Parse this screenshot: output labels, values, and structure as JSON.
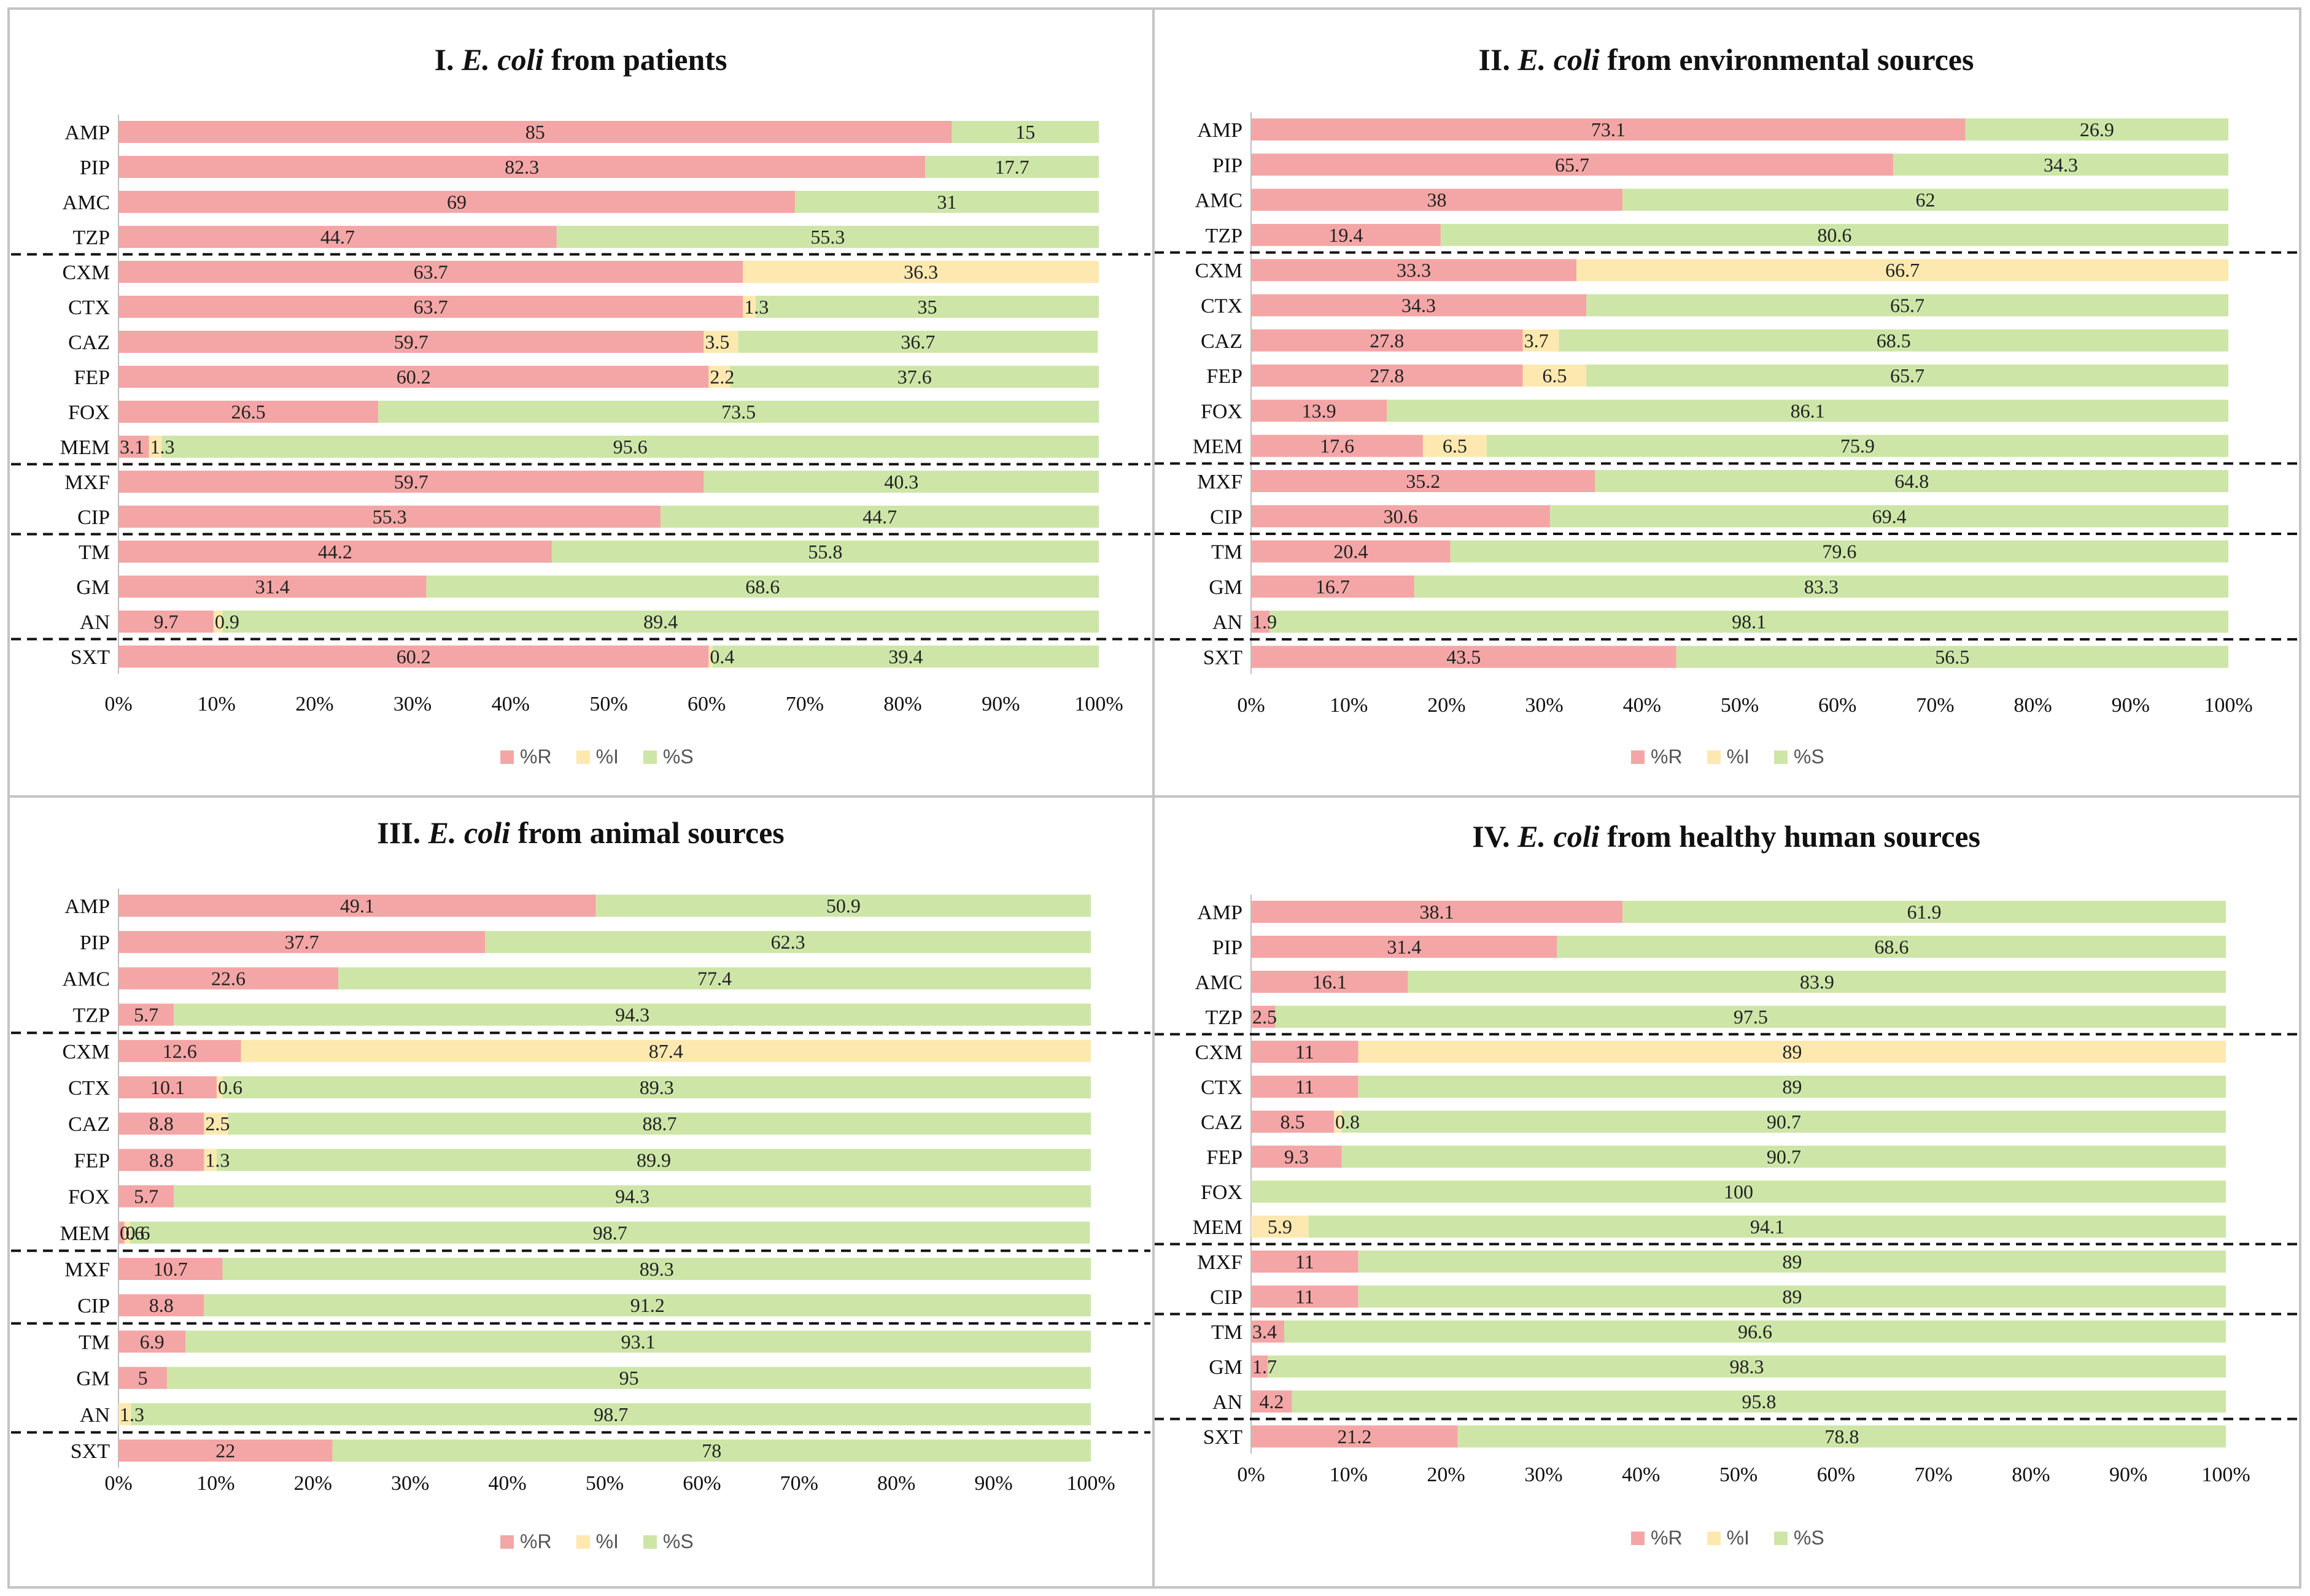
{
  "colors": {
    "R": "#f4a6a6",
    "I": "#fde9b0",
    "S": "#cde6a8",
    "frame": "#c4c4c4"
  },
  "legend": {
    "R": "%R",
    "I": "%I",
    "S": "%S"
  },
  "panels": [
    {
      "title_prefix": "I.",
      "title_organism": "E. coli",
      "title_suffix": "from patients"
    },
    {
      "title_prefix": "II.",
      "title_organism": "E. coli",
      "title_suffix": "from environmental sources"
    },
    {
      "title_prefix": "III.",
      "title_organism": "E. coli",
      "title_suffix": "from animal sources"
    },
    {
      "title_prefix": "IV.",
      "title_organism": "E. coli",
      "title_suffix": "from healthy human sources"
    }
  ],
  "chart_data": [
    {
      "type": "bar",
      "orientation": "horizontal",
      "stacked": "percent",
      "title": "I. E. coli from patients",
      "categories": [
        "AMP",
        "PIP",
        "AMC",
        "TZP",
        "CXM",
        "CTX",
        "CAZ",
        "FEP",
        "FOX",
        "MEM",
        "MXF",
        "CIP",
        "TM",
        "GM",
        "AN",
        "SXT"
      ],
      "group_breaks_after": [
        "TZP",
        "MEM",
        "CIP",
        "AN"
      ],
      "series": [
        {
          "name": "%R",
          "values": [
            85,
            82.3,
            69,
            44.7,
            63.7,
            63.7,
            59.7,
            60.2,
            26.5,
            3.1,
            59.7,
            55.3,
            44.2,
            31.4,
            9.7,
            60.2
          ]
        },
        {
          "name": "%I",
          "values": [
            0,
            0,
            0,
            0,
            36.3,
            1.3,
            3.5,
            2.2,
            0,
            1.3,
            0,
            0,
            0,
            0,
            0.9,
            0.4
          ]
        },
        {
          "name": "%S",
          "values": [
            15,
            17.7,
            31,
            55.3,
            0,
            35,
            36.7,
            37.6,
            73.5,
            95.6,
            40.3,
            44.7,
            55.8,
            68.6,
            89.4,
            39.4
          ]
        }
      ],
      "xticks": [
        "0%",
        "10%",
        "20%",
        "30%",
        "40%",
        "50%",
        "60%",
        "70%",
        "80%",
        "90%",
        "100%"
      ],
      "xlim": [
        0,
        100
      ]
    },
    {
      "type": "bar",
      "orientation": "horizontal",
      "stacked": "percent",
      "title": "II. E. coli from environmental sources",
      "categories": [
        "AMP",
        "PIP",
        "AMC",
        "TZP",
        "CXM",
        "CTX",
        "CAZ",
        "FEP",
        "FOX",
        "MEM",
        "MXF",
        "CIP",
        "TM",
        "GM",
        "AN",
        "SXT"
      ],
      "group_breaks_after": [
        "TZP",
        "MEM",
        "CIP",
        "AN"
      ],
      "series": [
        {
          "name": "%R",
          "values": [
            73.1,
            65.7,
            38,
            19.4,
            33.3,
            34.3,
            27.8,
            27.8,
            13.9,
            17.6,
            35.2,
            30.6,
            20.4,
            16.7,
            1.9,
            43.5
          ]
        },
        {
          "name": "%I",
          "values": [
            0,
            0,
            0,
            0,
            66.7,
            0,
            3.7,
            6.5,
            0,
            6.5,
            0,
            0,
            0,
            0,
            0,
            0
          ]
        },
        {
          "name": "%S",
          "values": [
            26.9,
            34.3,
            62,
            80.6,
            0,
            65.7,
            68.5,
            65.7,
            86.1,
            75.9,
            64.8,
            69.4,
            79.6,
            83.3,
            98.1,
            56.5
          ]
        }
      ],
      "xticks": [
        "0%",
        "10%",
        "20%",
        "30%",
        "40%",
        "50%",
        "60%",
        "70%",
        "80%",
        "90%",
        "100%"
      ],
      "xlim": [
        0,
        100
      ]
    },
    {
      "type": "bar",
      "orientation": "horizontal",
      "stacked": "percent",
      "title": "III. E. coli from animal sources",
      "categories": [
        "AMP",
        "PIP",
        "AMC",
        "TZP",
        "CXM",
        "CTX",
        "CAZ",
        "FEP",
        "FOX",
        "MEM",
        "MXF",
        "CIP",
        "TM",
        "GM",
        "AN",
        "SXT"
      ],
      "group_breaks_after": [
        "TZP",
        "MEM",
        "CIP",
        "AN"
      ],
      "series": [
        {
          "name": "%R",
          "values": [
            49.1,
            37.7,
            22.6,
            5.7,
            12.6,
            10.1,
            8.8,
            8.8,
            5.7,
            0.6,
            10.7,
            8.8,
            6.9,
            5,
            0,
            22
          ]
        },
        {
          "name": "%I",
          "values": [
            0,
            0,
            0,
            0,
            87.4,
            0.6,
            2.5,
            1.3,
            0,
            0.6,
            0,
            0,
            0,
            0,
            1.3,
            0
          ]
        },
        {
          "name": "%S",
          "values": [
            50.9,
            62.3,
            77.4,
            94.3,
            0,
            89.3,
            88.7,
            89.9,
            94.3,
            98.7,
            89.3,
            91.2,
            93.1,
            95,
            98.7,
            78
          ]
        }
      ],
      "xticks": [
        "0%",
        "10%",
        "20%",
        "30%",
        "40%",
        "50%",
        "60%",
        "70%",
        "80%",
        "90%",
        "100%"
      ],
      "xlim": [
        0,
        100
      ]
    },
    {
      "type": "bar",
      "orientation": "horizontal",
      "stacked": "percent",
      "title": "IV. E. coli from healthy human sources",
      "categories": [
        "AMP",
        "PIP",
        "AMC",
        "TZP",
        "CXM",
        "CTX",
        "CAZ",
        "FEP",
        "FOX",
        "MEM",
        "MXF",
        "CIP",
        "TM",
        "GM",
        "AN",
        "SXT"
      ],
      "group_breaks_after": [
        "TZP",
        "MEM",
        "CIP",
        "AN"
      ],
      "series": [
        {
          "name": "%R",
          "values": [
            38.1,
            31.4,
            16.1,
            2.5,
            11,
            11,
            8.5,
            9.3,
            0,
            0,
            11,
            11,
            3.4,
            1.7,
            4.2,
            21.2
          ]
        },
        {
          "name": "%I",
          "values": [
            0,
            0,
            0,
            0,
            89,
            0,
            0.8,
            0,
            0,
            5.9,
            0,
            0,
            0,
            0,
            0,
            0
          ]
        },
        {
          "name": "%S",
          "values": [
            61.9,
            68.6,
            83.9,
            97.5,
            0,
            89,
            90.7,
            90.7,
            100,
            94.1,
            89,
            89,
            96.6,
            98.3,
            95.8,
            78.8
          ]
        }
      ],
      "xticks": [
        "0%",
        "10%",
        "20%",
        "30%",
        "40%",
        "50%",
        "60%",
        "70%",
        "80%",
        "90%",
        "100%"
      ],
      "xlim": [
        0,
        100
      ]
    }
  ]
}
